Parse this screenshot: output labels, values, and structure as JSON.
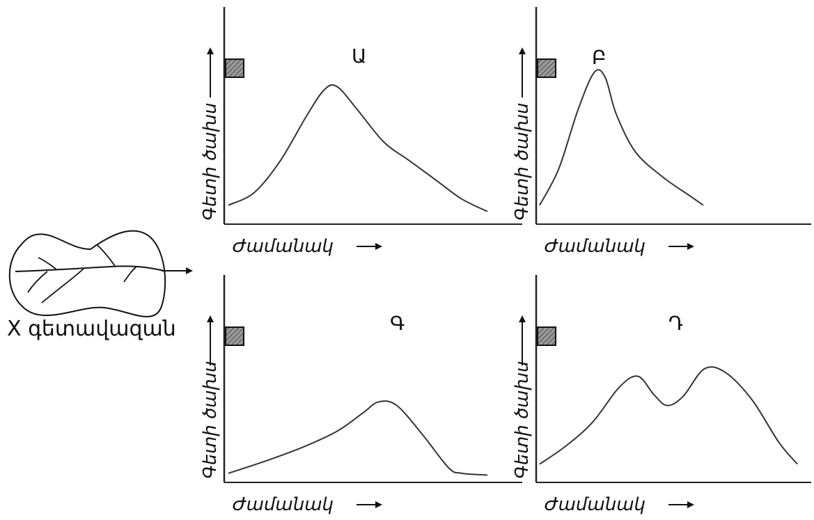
{
  "basin": {
    "label": "X գետավազան"
  },
  "axes": {
    "xlabel": "Ժամանակ",
    "ylabel": "Գետի ծախս"
  },
  "chart_data": [
    {
      "type": "line",
      "title": "Ա",
      "xlabel": "Ժամանակ",
      "ylabel": "Գետի ծախս",
      "description_shape": "single broad peak",
      "x": [
        0,
        0.1,
        0.2,
        0.3,
        0.37,
        0.42,
        0.5,
        0.6,
        0.7,
        0.8,
        0.9,
        1.0
      ],
      "y": [
        0.12,
        0.2,
        0.4,
        0.68,
        0.85,
        0.87,
        0.72,
        0.52,
        0.4,
        0.28,
        0.16,
        0.08
      ]
    },
    {
      "type": "line",
      "title": "Բ",
      "xlabel": "Ժամանակ",
      "ylabel": "Գետի ծախս",
      "description_shape": "sharp early peak",
      "x": [
        0,
        0.07,
        0.14,
        0.2,
        0.24,
        0.28,
        0.35,
        0.45,
        0.55,
        0.6
      ],
      "y": [
        0.12,
        0.35,
        0.72,
        0.96,
        0.93,
        0.7,
        0.46,
        0.3,
        0.18,
        0.12
      ]
    },
    {
      "type": "line",
      "title": "Գ",
      "xlabel": "Ժամանակ",
      "ylabel": "Գետի ծախս",
      "description_shape": "late peak",
      "x": [
        0,
        0.15,
        0.3,
        0.42,
        0.52,
        0.58,
        0.65,
        0.75,
        0.85,
        0.9,
        1.0
      ],
      "y": [
        0.05,
        0.12,
        0.2,
        0.28,
        0.38,
        0.44,
        0.42,
        0.26,
        0.08,
        0.05,
        0.04
      ]
    },
    {
      "type": "line",
      "title": "Դ",
      "xlabel": "Ժամանակ",
      "ylabel": "Գետի ծախս",
      "description_shape": "double peak",
      "x": [
        0,
        0.1,
        0.2,
        0.3,
        0.37,
        0.43,
        0.48,
        0.54,
        0.62,
        0.7,
        0.8,
        0.9,
        0.97
      ],
      "y": [
        0.1,
        0.2,
        0.33,
        0.52,
        0.58,
        0.48,
        0.42,
        0.47,
        0.62,
        0.6,
        0.45,
        0.22,
        0.1
      ]
    }
  ]
}
